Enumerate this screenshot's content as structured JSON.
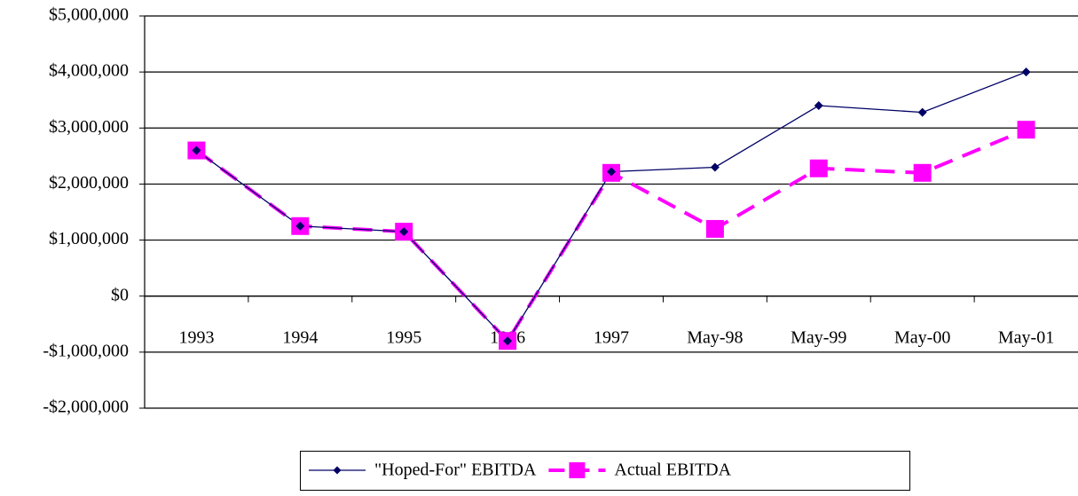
{
  "chart_data": {
    "type": "line",
    "categories": [
      "1993",
      "1994",
      "1995",
      "1996",
      "1997",
      "May-98",
      "May-99",
      "May-00",
      "May-01"
    ],
    "series": [
      {
        "name": "\"Hoped-For\" EBITDA",
        "color": "#000066",
        "values": [
          2600000,
          1250000,
          1150000,
          -800000,
          2220000,
          2300000,
          3400000,
          3280000,
          4000000
        ]
      },
      {
        "name": "Actual EBITDA",
        "color": "#ff00ff",
        "values": [
          2600000,
          1250000,
          1150000,
          -800000,
          2200000,
          1200000,
          2280000,
          2200000,
          2970000
        ]
      }
    ],
    "ylim": [
      -2000000,
      5000000
    ],
    "yticks": [
      {
        "value": -2000000,
        "label": "-$2,000,000"
      },
      {
        "value": -1000000,
        "label": "-$1,000,000"
      },
      {
        "value": 0,
        "label": "$0"
      },
      {
        "value": 1000000,
        "label": "$1,000,000"
      },
      {
        "value": 2000000,
        "label": "$2,000,000"
      },
      {
        "value": 3000000,
        "label": "$3,000,000"
      },
      {
        "value": 4000000,
        "label": "$4,000,000"
      },
      {
        "value": 5000000,
        "label": "$5,000,000"
      }
    ],
    "grid": true,
    "legend": "bottom"
  }
}
